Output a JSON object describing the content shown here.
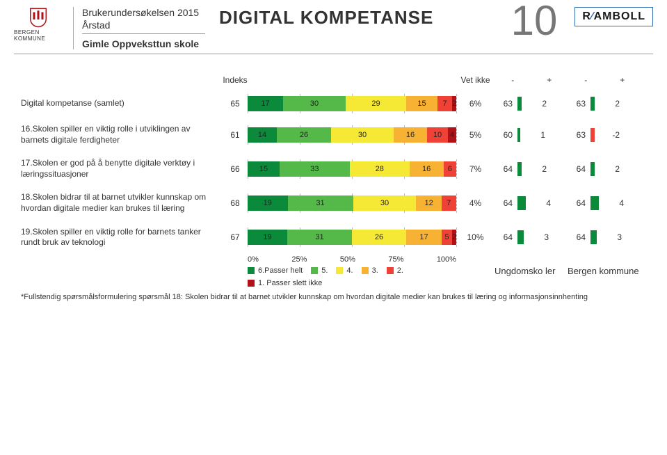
{
  "header": {
    "bergen_caption": "BERGEN KOMMUNE",
    "survey": "Brukerundersøkelsen 2015",
    "district": "Årstad",
    "school": "Gimle Oppveksttun skole",
    "title": "DIGITAL KOMPETANSE",
    "page_number": "10",
    "ramboll_text": "RAMBOLL"
  },
  "col_headers": {
    "indeks": "Indeks",
    "vet_ikke": "Vet ikke",
    "minus": "-",
    "plus": "+"
  },
  "colors": {
    "c6": "#0a8a3a",
    "c5": "#54b948",
    "c4": "#f6e936",
    "c3": "#f7b233",
    "c2": "#ef4136",
    "c1": "#b11116",
    "marker_green": "#0a8a3a",
    "marker_red": "#ef4136"
  },
  "rows": [
    {
      "label": "Digital kompetanse (samlet)",
      "indeks": 65,
      "segments": [
        17,
        30,
        29,
        15,
        7,
        2
      ],
      "vet_ikke": "6%",
      "g1": {
        "val": 63,
        "marker": 2,
        "marker_color": "#0a8a3a"
      },
      "g2": {
        "val": 63,
        "marker": 2,
        "marker_color": "#0a8a3a"
      }
    },
    {
      "label": "16.Skolen spiller en viktig rolle i utviklingen av barnets digitale ferdigheter",
      "indeks": 61,
      "segments": [
        14,
        26,
        30,
        16,
        10,
        4
      ],
      "vet_ikke": "5%",
      "g1": {
        "val": 60,
        "marker": 1,
        "marker_color": "#0a8a3a"
      },
      "g2": {
        "val": 63,
        "marker": -2,
        "marker_color": "#ef4136"
      }
    },
    {
      "label": "17.Skolen er god på å benytte digitale verktøy i læringssituasjoner",
      "indeks": 66,
      "segments": [
        15,
        33,
        28,
        16,
        6,
        0
      ],
      "vet_ikke": "7%",
      "g1": {
        "val": 64,
        "marker": 2,
        "marker_color": "#0a8a3a"
      },
      "g2": {
        "val": 64,
        "marker": 2,
        "marker_color": "#0a8a3a"
      }
    },
    {
      "label": "18.Skolen bidrar til at barnet utvikler kunnskap om hvordan digitale medier kan brukes til læring",
      "indeks": 68,
      "segments": [
        19,
        31,
        30,
        12,
        7,
        0
      ],
      "vet_ikke": "4%",
      "g1": {
        "val": 64,
        "marker": 4,
        "marker_color": "#0a8a3a"
      },
      "g2": {
        "val": 64,
        "marker": 4,
        "marker_color": "#0a8a3a"
      }
    },
    {
      "label": "19.Skolen spiller en viktig rolle for barnets tanker rundt bruk av teknologi",
      "indeks": 67,
      "segments": [
        19,
        31,
        26,
        17,
        5,
        2
      ],
      "vet_ikke": "10%",
      "g1": {
        "val": 64,
        "marker": 3,
        "marker_color": "#0a8a3a"
      },
      "g2": {
        "val": 64,
        "marker": 3,
        "marker_color": "#0a8a3a"
      }
    }
  ],
  "axis": {
    "ticks": [
      "0%",
      "25%",
      "50%",
      "75%",
      "100%"
    ]
  },
  "legend": [
    {
      "color": "#0a8a3a",
      "label": "6.Passer helt"
    },
    {
      "color": "#54b948",
      "label": "5."
    },
    {
      "color": "#f6e936",
      "label": "4."
    },
    {
      "color": "#f7b233",
      "label": "3."
    },
    {
      "color": "#ef4136",
      "label": "2."
    },
    {
      "color": "#b11116",
      "label": "1. Passer slett ikke"
    }
  ],
  "footer_groups": {
    "g1": "Ungdomsko ler",
    "g2": "Bergen kommune"
  },
  "footnote": "*Fullstendig spørsmålsformulering spørsmål 18: Skolen bidrar til at barnet utvikler kunnskap om hvordan digitale medier kan brukes til læring og informasjonsinnhenting"
}
